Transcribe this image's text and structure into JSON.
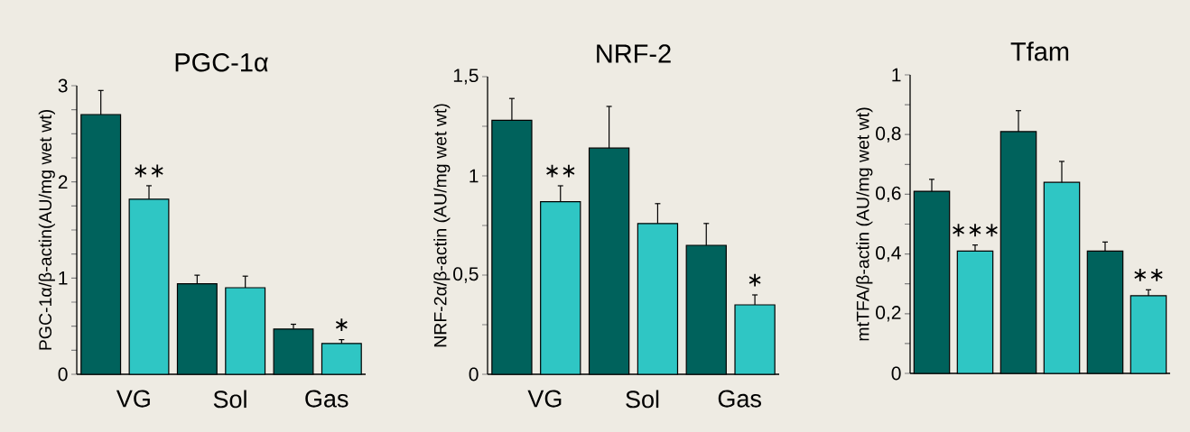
{
  "chart_data": [
    {
      "type": "bar",
      "title": "PGC-1α",
      "ylabel": "PGC-1α/β-actin(AU/mg wet wt)",
      "categories": [
        "VG",
        "Sol",
        "Gas"
      ],
      "series": [
        {
          "color": "#00625c",
          "values": [
            2.7,
            0.94,
            0.47
          ],
          "errors": [
            0.25,
            0.09,
            0.05
          ]
        },
        {
          "color": "#2fc6c4",
          "values": [
            1.82,
            0.9,
            0.32
          ],
          "errors": [
            0.14,
            0.12,
            0.04
          ]
        }
      ],
      "ylim": [
        0,
        3
      ],
      "yticks": [
        0,
        {
          "value": 0.25,
          "label": null
        },
        {
          "value": 0.5,
          "label": null
        },
        {
          "value": 0.75,
          "label": null
        },
        1,
        {
          "value": 1.25,
          "label": null
        },
        {
          "value": 1.5,
          "label": null
        },
        {
          "value": 1.75,
          "label": null
        },
        2,
        {
          "value": 2.25,
          "label": null
        },
        {
          "value": 2.5,
          "label": null
        },
        {
          "value": 2.75,
          "label": null
        },
        3
      ],
      "annotations": [
        "∗∗",
        "∗"
      ]
    },
    {
      "type": "bar",
      "title": "NRF-2",
      "ylabel": "NRF-2α/β-actin (AU/mg wet wt)",
      "categories": [
        "VG",
        "Sol",
        "Gas"
      ],
      "series": [
        {
          "color": "#00625c",
          "values": [
            1.28,
            1.14,
            0.65
          ],
          "errors": [
            0.11,
            0.21,
            0.11
          ]
        },
        {
          "color": "#2fc6c4",
          "values": [
            0.87,
            0.76,
            0.35
          ],
          "errors": [
            0.08,
            0.1,
            0.05
          ]
        }
      ],
      "ylim": [
        0,
        1.5
      ],
      "yticks": [
        0,
        {
          "value": 0.25,
          "label": null
        },
        {
          "value": 0.5,
          "label": "0,5"
        },
        {
          "value": 0.75,
          "label": null
        },
        1,
        {
          "value": 1.25,
          "label": null
        },
        {
          "value": 1.5,
          "label": "1,5"
        }
      ],
      "annotations": [
        "∗∗",
        "∗"
      ]
    },
    {
      "type": "bar",
      "title": "Tfam",
      "ylabel": "mtTFA/β-actin (AU/mg wet wt)",
      "categories": [
        null,
        null,
        null
      ],
      "series": [
        {
          "color": "#00625c",
          "values": [
            0.61,
            0.81,
            0.41
          ],
          "errors": [
            0.04,
            0.07,
            0.03
          ]
        },
        {
          "color": "#2fc6c4",
          "values": [
            0.41,
            0.64,
            0.26
          ],
          "errors": [
            0.02,
            0.07,
            0.02
          ]
        }
      ],
      "ylim": [
        0,
        1
      ],
      "yticks": [
        0,
        {
          "value": 0.1,
          "label": null
        },
        {
          "value": 0.2,
          "label": "0,2"
        },
        {
          "value": 0.3,
          "label": null
        },
        {
          "value": 0.4,
          "label": "0,4"
        },
        {
          "value": 0.5,
          "label": null
        },
        {
          "value": 0.6,
          "label": "0,6"
        },
        {
          "value": 0.7,
          "label": null
        },
        {
          "value": 0.8,
          "label": "0,8"
        },
        {
          "value": 0.9,
          "label": null
        },
        1
      ],
      "annotations": [
        "∗∗∗",
        "∗∗"
      ]
    }
  ]
}
